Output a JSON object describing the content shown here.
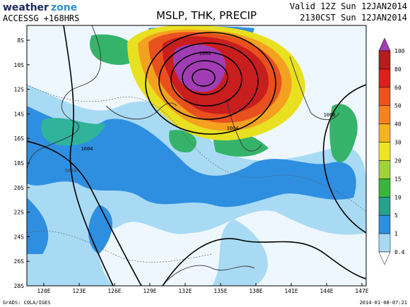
{
  "header": {
    "logo": [
      "weather",
      "zone"
    ],
    "model": "ACCESSG +168HRS",
    "title": "MSLP, THK, PRECIP",
    "valid": "Valid 12Z Sun 12JAN2014",
    "local": "2130CST Sun 12JAN2014"
  },
  "map": {
    "lat_labels": [
      "8S",
      "10S",
      "12S",
      "14S",
      "16S",
      "18S",
      "20S",
      "22S",
      "24S",
      "26S",
      "28S"
    ],
    "lon_labels": [
      "120E",
      "123E",
      "126E",
      "129E",
      "132E",
      "135E",
      "138E",
      "141E",
      "144E",
      "147E"
    ],
    "contour_labels": [
      "1000",
      "1004",
      "1004",
      "1008",
      "5840"
    ]
  },
  "colorbar": {
    "labels": [
      "100",
      "80",
      "60",
      "50",
      "40",
      "30",
      "20",
      "15",
      "10",
      "5",
      "1",
      "0.4"
    ]
  },
  "footer": {
    "credit": "GrADS: COLA/IGES",
    "timestamp": "2014-01-08-07:21"
  }
}
